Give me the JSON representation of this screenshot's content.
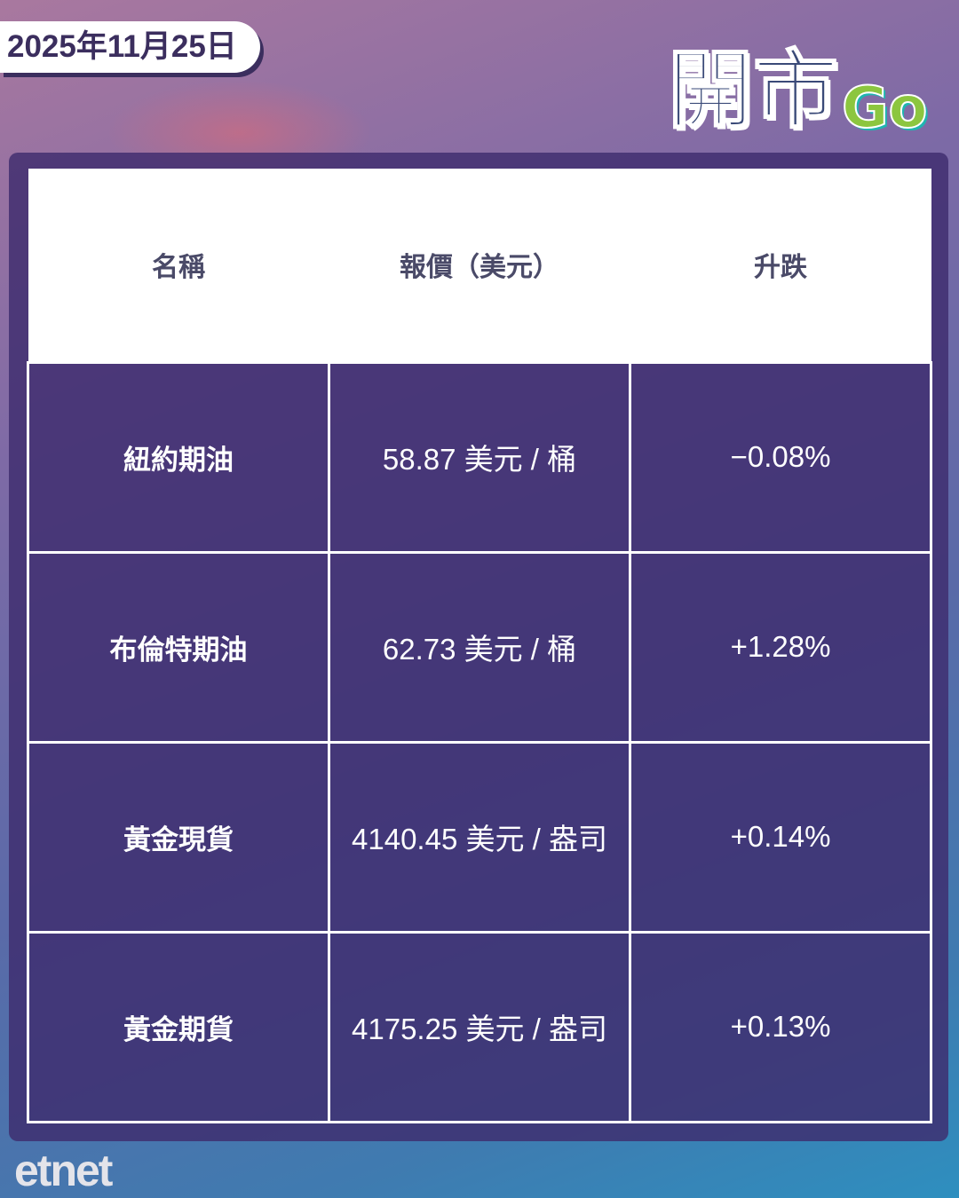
{
  "date": "2025年11月25日",
  "logo": {
    "text": "開市Go",
    "colors": {
      "main": "#3a4a78",
      "green": "#8cc63f",
      "teal": "#1fb5b0"
    }
  },
  "table": {
    "headers": [
      "名稱",
      "報價（美元）",
      "升跌"
    ],
    "rows": [
      {
        "name": "紐約期油",
        "price": "58.87 美元 / 桶",
        "change": "−0.08%"
      },
      {
        "name": "布倫特期油",
        "price": "62.73 美元 / 桶",
        "change": "+1.28%"
      },
      {
        "name": "黃金現貨",
        "price": "4140.45 美元 / 盎司",
        "change": "+0.14%"
      },
      {
        "name": "黃金期貨",
        "price": "4175.25 美元 / 盎司",
        "change": "+0.13%"
      }
    ]
  },
  "brand": "etnet"
}
